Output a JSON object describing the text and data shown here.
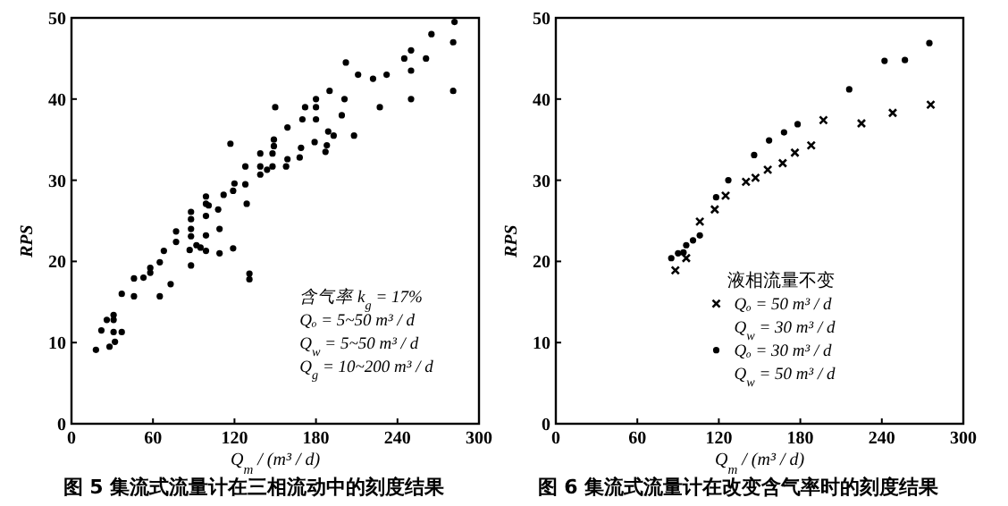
{
  "chart_data": [
    {
      "type": "scatter",
      "title": "图 5 集流式流量计在三相流动中的刻度结果",
      "xlabel": "Q$_{m}$ / (m³ / d)",
      "ylabel": "RPS",
      "xlim": [
        0,
        300
      ],
      "ylim": [
        0,
        50
      ],
      "xticks": [
        0,
        60,
        120,
        180,
        240,
        300
      ],
      "yticks": [
        0,
        10,
        20,
        30,
        40,
        50
      ],
      "grid": false,
      "legend": false,
      "marker": "circle",
      "series": [
        {
          "color": "#000000",
          "x": [
            282,
            265,
            281,
            250,
            245,
            261,
            202,
            250,
            211,
            222,
            232,
            281,
            190,
            250,
            201,
            227,
            150,
            180,
            180,
            172,
            199,
            170,
            180,
            159,
            189,
            193,
            208,
            149,
            179,
            188,
            149,
            117,
            169,
            187,
            139,
            148,
            159,
            168,
            128,
            139,
            144,
            148,
            158,
            139,
            128,
            120,
            119,
            112,
            99,
            129,
            99,
            101,
            108,
            88,
            99,
            88,
            77,
            109,
            99,
            88,
            88,
            77,
            68,
            87,
            92,
            95,
            99,
            109,
            119,
            53,
            46,
            58,
            58,
            65,
            88,
            73,
            65,
            46,
            37,
            131,
            131,
            22,
            26,
            31,
            31,
            31,
            37,
            32,
            28,
            18
          ],
          "values": [
            49.5,
            48,
            47,
            46,
            45,
            45,
            44.5,
            43.5,
            43,
            42.5,
            43,
            41,
            41,
            40,
            40,
            39,
            39,
            40,
            39,
            39,
            38,
            37.5,
            37.5,
            36.5,
            36,
            35.5,
            35.5,
            35,
            34.7,
            34.3,
            34.2,
            34.5,
            34,
            33.5,
            33.3,
            33.3,
            32.6,
            32.8,
            31.7,
            31.7,
            31.3,
            31.7,
            31.7,
            30.7,
            29.5,
            29.6,
            28.7,
            28.2,
            28,
            27.1,
            27.1,
            26.9,
            26.4,
            26.1,
            25.6,
            25.2,
            23.7,
            24,
            23.2,
            24,
            23.1,
            22.4,
            21.3,
            21.4,
            22,
            21.7,
            21.3,
            21,
            21.6,
            18,
            17.9,
            19.2,
            18.6,
            19.9,
            19.5,
            17.2,
            15.7,
            15.7,
            16,
            18.5,
            17.8,
            11.5,
            12.8,
            13.4,
            12.8,
            11.3,
            11.3,
            10.1,
            9.5,
            9.1
          ]
        }
      ],
      "annotations": [
        "含气率 k$_{g}$ = 17%",
        "Qₒ = 5~50 m³ / d",
        "Q$_{w}$ = 5~50 m³ / d",
        "Q$_{g}$ = 10~200 m³ / d"
      ]
    },
    {
      "type": "scatter",
      "title": "图 6 集流式流量计在改变含气率时的刻度结果",
      "xlabel": "Q$_{m}$ / (m³ / d)",
      "ylabel": "RPS",
      "xlim": [
        0,
        300
      ],
      "ylim": [
        0,
        50
      ],
      "xticks": [
        0,
        60,
        120,
        180,
        240,
        300
      ],
      "yticks": [
        0,
        10,
        20,
        30,
        40,
        50
      ],
      "grid": false,
      "legend": "bottom",
      "legend_title": "液相流量不变",
      "series": [
        {
          "name": "Qₒ = 50 m³ / d\nQ$_{w}$ = 30 m³ / d",
          "marker": "cross",
          "color": "#000000",
          "x": [
            276,
            248,
            225,
            197,
            188,
            176,
            167,
            156,
            147,
            140,
            125,
            117,
            106,
            96,
            88
          ],
          "values": [
            39.3,
            38.3,
            37,
            37.4,
            34.3,
            33.4,
            32.1,
            31.3,
            30.3,
            29.8,
            28.1,
            26.4,
            24.9,
            20.4,
            18.9
          ]
        },
        {
          "name": "Qₒ = 30 m³ / d\nQ$_{w}$ = 50 m³ / d",
          "marker": "circle",
          "color": "#000000",
          "x": [
            275,
            257,
            242,
            216,
            178,
            168,
            157,
            146,
            127,
            118,
            106,
            101,
            96,
            94,
            90,
            85
          ],
          "values": [
            46.9,
            44.8,
            44.7,
            41.2,
            36.9,
            35.9,
            34.9,
            33.1,
            30,
            27.9,
            23.2,
            22.6,
            22,
            21.1,
            21,
            20.4
          ]
        }
      ]
    }
  ]
}
